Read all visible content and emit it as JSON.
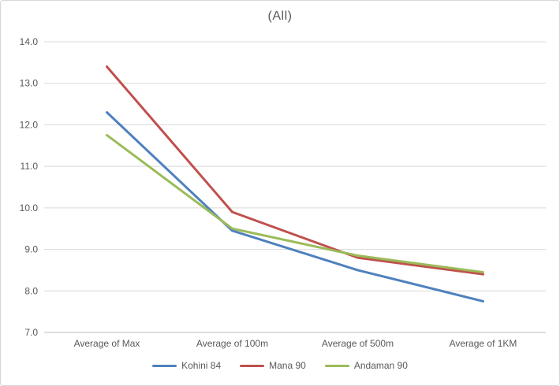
{
  "chart_data": {
    "type": "line",
    "title": "(All)",
    "categories": [
      "Average of Max",
      "Average of 100m",
      "Average of 500m",
      "Average of 1KM"
    ],
    "series": [
      {
        "name": "Kohini 84",
        "color": "#4F81BD",
        "values": [
          12.3,
          9.45,
          8.5,
          7.75
        ]
      },
      {
        "name": "Mana 90",
        "color": "#C0504D",
        "values": [
          13.4,
          9.9,
          8.8,
          8.4
        ]
      },
      {
        "name": "Andaman 90",
        "color": "#9BBB59",
        "values": [
          11.75,
          9.5,
          8.85,
          8.45
        ]
      }
    ],
    "xlabel": "",
    "ylabel": "",
    "ylim": [
      7.0,
      14.0
    ],
    "ytick_step": 1.0,
    "ytick_labels": [
      "7.0",
      "8.0",
      "9.0",
      "10.0",
      "11.0",
      "12.0",
      "13.0",
      "14.0"
    ],
    "grid": true,
    "legend_position": "bottom",
    "colors": {
      "title_text": "#595959",
      "tick_text": "#595959",
      "gridline": "#d9d9d9",
      "axis_line": "#bfbfbf",
      "frame_border": "#d7d7d7",
      "background": "#ffffff"
    }
  }
}
